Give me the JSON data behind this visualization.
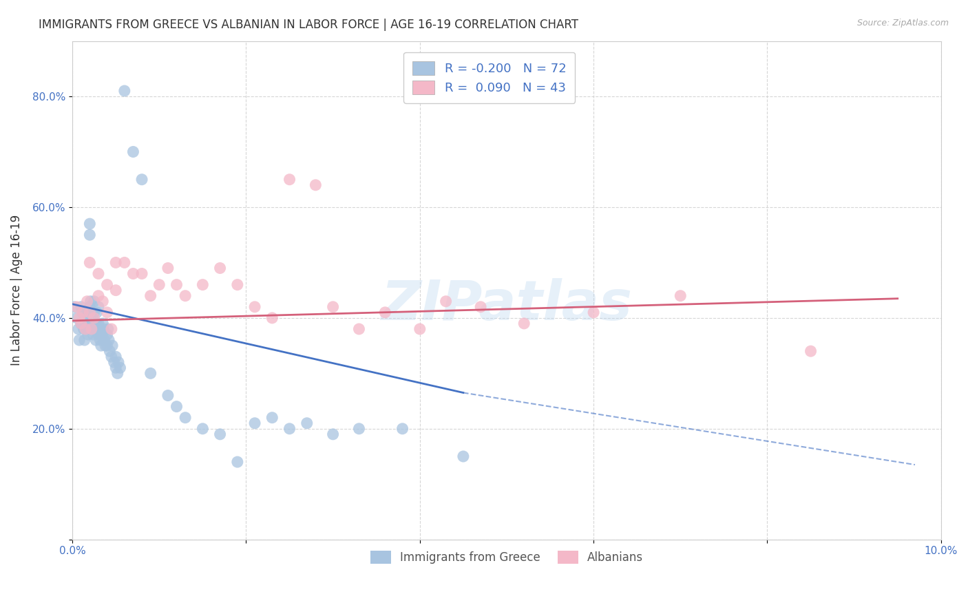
{
  "title": "IMMIGRANTS FROM GREECE VS ALBANIAN IN LABOR FORCE | AGE 16-19 CORRELATION CHART",
  "source": "Source: ZipAtlas.com",
  "ylabel": "In Labor Force | Age 16-19",
  "xlim": [
    0.0,
    0.1
  ],
  "ylim": [
    0.0,
    0.9
  ],
  "greece_color": "#a8c4e0",
  "albanian_color": "#f4b8c8",
  "greece_trend_color": "#4472c4",
  "albanian_trend_color": "#d4607a",
  "watermark": "ZIPatlas",
  "greece_x": [
    0.0002,
    0.0005,
    0.0007,
    0.0008,
    0.001,
    0.001,
    0.0012,
    0.0013,
    0.0014,
    0.0015,
    0.0016,
    0.0017,
    0.0018,
    0.0018,
    0.0019,
    0.002,
    0.002,
    0.002,
    0.0021,
    0.0022,
    0.0022,
    0.0023,
    0.0024,
    0.0025,
    0.0025,
    0.0026,
    0.0027,
    0.0028,
    0.0028,
    0.0029,
    0.003,
    0.003,
    0.003,
    0.0031,
    0.0032,
    0.0033,
    0.0034,
    0.0035,
    0.0036,
    0.0037,
    0.0038,
    0.004,
    0.004,
    0.0041,
    0.0042,
    0.0043,
    0.0045,
    0.0046,
    0.0048,
    0.005,
    0.005,
    0.0052,
    0.0053,
    0.0055,
    0.006,
    0.007,
    0.008,
    0.009,
    0.011,
    0.012,
    0.013,
    0.015,
    0.017,
    0.019,
    0.021,
    0.023,
    0.025,
    0.027,
    0.03,
    0.033,
    0.038,
    0.045
  ],
  "greece_y": [
    0.42,
    0.4,
    0.38,
    0.36,
    0.42,
    0.39,
    0.41,
    0.38,
    0.36,
    0.4,
    0.39,
    0.38,
    0.37,
    0.41,
    0.39,
    0.57,
    0.55,
    0.42,
    0.43,
    0.41,
    0.38,
    0.39,
    0.37,
    0.43,
    0.41,
    0.38,
    0.36,
    0.39,
    0.41,
    0.38,
    0.37,
    0.39,
    0.42,
    0.38,
    0.36,
    0.35,
    0.37,
    0.39,
    0.38,
    0.36,
    0.35,
    0.37,
    0.35,
    0.38,
    0.36,
    0.34,
    0.33,
    0.35,
    0.32,
    0.31,
    0.33,
    0.3,
    0.32,
    0.31,
    0.81,
    0.7,
    0.65,
    0.3,
    0.26,
    0.24,
    0.22,
    0.2,
    0.19,
    0.14,
    0.21,
    0.22,
    0.2,
    0.21,
    0.19,
    0.2,
    0.2,
    0.15
  ],
  "albanian_x": [
    0.0005,
    0.0008,
    0.001,
    0.0012,
    0.0015,
    0.0017,
    0.002,
    0.002,
    0.0022,
    0.0025,
    0.003,
    0.003,
    0.0035,
    0.004,
    0.004,
    0.0045,
    0.005,
    0.005,
    0.006,
    0.007,
    0.008,
    0.009,
    0.01,
    0.011,
    0.012,
    0.013,
    0.015,
    0.017,
    0.019,
    0.021,
    0.023,
    0.025,
    0.028,
    0.03,
    0.033,
    0.036,
    0.04,
    0.043,
    0.047,
    0.052,
    0.06,
    0.07,
    0.085
  ],
  "albanian_y": [
    0.42,
    0.4,
    0.39,
    0.41,
    0.38,
    0.43,
    0.41,
    0.5,
    0.38,
    0.4,
    0.48,
    0.44,
    0.43,
    0.41,
    0.46,
    0.38,
    0.5,
    0.45,
    0.5,
    0.48,
    0.48,
    0.44,
    0.46,
    0.49,
    0.46,
    0.44,
    0.46,
    0.49,
    0.46,
    0.42,
    0.4,
    0.65,
    0.64,
    0.42,
    0.38,
    0.41,
    0.38,
    0.43,
    0.42,
    0.39,
    0.41,
    0.44,
    0.34
  ],
  "greece_trend_x0": 0.0,
  "greece_trend_y0": 0.425,
  "greece_trend_x1": 0.045,
  "greece_trend_y1": 0.265,
  "greece_trend_xd0": 0.045,
  "greece_trend_yd0": 0.265,
  "greece_trend_xd1": 0.097,
  "greece_trend_yd1": 0.135,
  "albanian_trend_x0": 0.0,
  "albanian_trend_y0": 0.395,
  "albanian_trend_x1": 0.095,
  "albanian_trend_y1": 0.435
}
